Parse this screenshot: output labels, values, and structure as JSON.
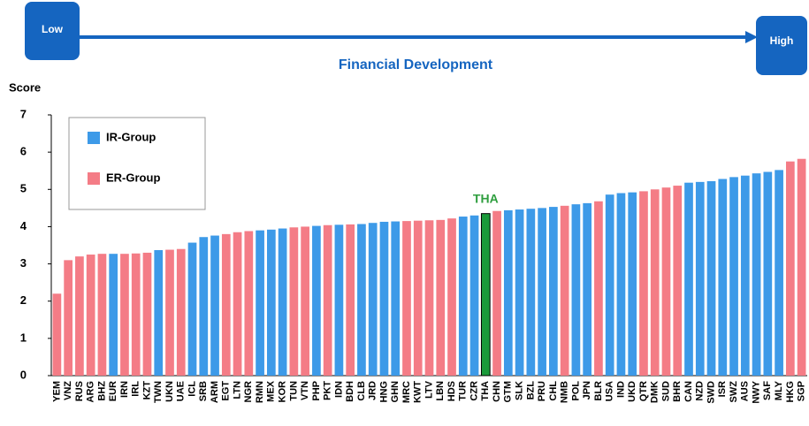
{
  "header": {
    "low": "Low",
    "high": "High",
    "caption": "Financial Development"
  },
  "chart_data": {
    "type": "bar",
    "y_label": "Score",
    "categories": [
      "YEM",
      "VNZ",
      "RUS",
      "ARG",
      "BHZ",
      "EUR",
      "IRN",
      "IRL",
      "KZT",
      "TWN",
      "UKN",
      "UAE",
      "ICL",
      "SRB",
      "ARM",
      "EGT",
      "LTN",
      "NGR",
      "RMN",
      "MEX",
      "KOR",
      "TUN",
      "VTN",
      "PHP",
      "PKT",
      "IDN",
      "BDH",
      "CLB",
      "JRD",
      "HNG",
      "GHN",
      "MRC",
      "KWT",
      "LTV",
      "LBN",
      "HDS",
      "TUR",
      "CZR",
      "THA",
      "CHN",
      "GTM",
      "SLK",
      "BZL",
      "PRU",
      "CHL",
      "NMB",
      "POL",
      "JPN",
      "BLR",
      "USA",
      "IND",
      "UKD",
      "QTR",
      "DMK",
      "SUD",
      "BHR",
      "CAN",
      "NZD",
      "SWD",
      "ISR",
      "SWZ",
      "AUS",
      "NWY",
      "SAF",
      "MLY",
      "HKG",
      "SGP"
    ],
    "values": [
      2.2,
      3.1,
      3.2,
      3.25,
      3.27,
      3.27,
      3.27,
      3.28,
      3.3,
      3.37,
      3.38,
      3.4,
      3.57,
      3.72,
      3.76,
      3.8,
      3.85,
      3.88,
      3.9,
      3.92,
      3.95,
      3.98,
      4.0,
      4.02,
      4.04,
      4.05,
      4.06,
      4.07,
      4.1,
      4.13,
      4.14,
      4.15,
      4.16,
      4.17,
      4.18,
      4.22,
      4.27,
      4.3,
      4.35,
      4.42,
      4.44,
      4.46,
      4.48,
      4.5,
      4.53,
      4.56,
      4.6,
      4.63,
      4.68,
      4.86,
      4.9,
      4.92,
      4.95,
      5.0,
      5.05,
      5.1,
      5.18,
      5.2,
      5.22,
      5.28,
      5.33,
      5.37,
      5.43,
      5.47,
      5.52,
      5.75,
      5.82
    ],
    "colors": [
      "#f47c86",
      "#f47c86",
      "#f47c86",
      "#f47c86",
      "#f47c86",
      "#3d9ae8",
      "#f47c86",
      "#f47c86",
      "#f47c86",
      "#3d9ae8",
      "#f47c86",
      "#f47c86",
      "#3d9ae8",
      "#3d9ae8",
      "#3d9ae8",
      "#f47c86",
      "#f47c86",
      "#f47c86",
      "#3d9ae8",
      "#3d9ae8",
      "#3d9ae8",
      "#f47c86",
      "#f47c86",
      "#3d9ae8",
      "#f47c86",
      "#3d9ae8",
      "#f47c86",
      "#3d9ae8",
      "#3d9ae8",
      "#3d9ae8",
      "#3d9ae8",
      "#f47c86",
      "#f47c86",
      "#f47c86",
      "#f47c86",
      "#f47c86",
      "#3d9ae8",
      "#3d9ae8",
      "#1a9a3a",
      "#f47c86",
      "#3d9ae8",
      "#3d9ae8",
      "#3d9ae8",
      "#3d9ae8",
      "#3d9ae8",
      "#f47c86",
      "#3d9ae8",
      "#3d9ae8",
      "#f47c86",
      "#3d9ae8",
      "#3d9ae8",
      "#3d9ae8",
      "#f47c86",
      "#f47c86",
      "#f47c86",
      "#f47c86",
      "#3d9ae8",
      "#3d9ae8",
      "#3d9ae8",
      "#3d9ae8",
      "#3d9ae8",
      "#3d9ae8",
      "#3d9ae8",
      "#3d9ae8",
      "#3d9ae8",
      "#f47c86",
      "#f47c86"
    ],
    "legend": [
      {
        "name": "IR-Group",
        "color": "#3d9ae8"
      },
      {
        "name": "ER-Group",
        "color": "#f47c86"
      }
    ],
    "highlight": {
      "label": "THA",
      "color": "#2e9e3e"
    },
    "ylim": [
      0,
      7
    ],
    "yticks": [
      0,
      1,
      2,
      3,
      4,
      5,
      6,
      7
    ]
  }
}
